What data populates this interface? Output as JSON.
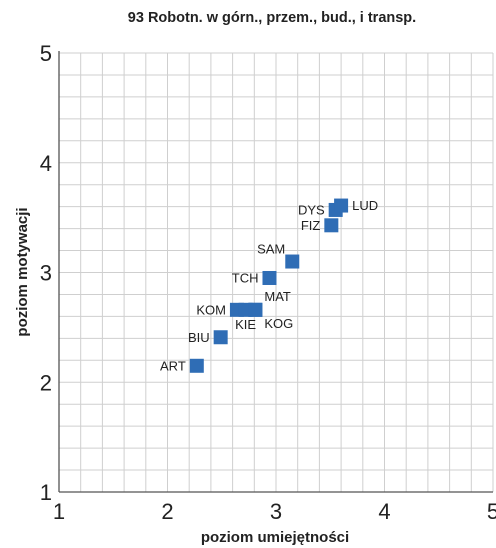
{
  "chart_data": {
    "type": "scatter",
    "title": "93 Robotn. w górn., przem., bud., i transp.",
    "xlabel": "poziom umiejętności",
    "ylabel": "poziom motywacji",
    "xlim": [
      1,
      5
    ],
    "ylim": [
      1,
      5
    ],
    "xticks": [
      "1",
      "2",
      "3",
      "4",
      "5"
    ],
    "yticks": [
      "1",
      "2",
      "3",
      "4",
      "5"
    ],
    "grid": true,
    "minor_grid_step": 0.2,
    "marker": "square",
    "marker_color": "#2f6db5",
    "points": [
      {
        "label": "ART",
        "x": 2.27,
        "y": 2.15,
        "label_pos": "left"
      },
      {
        "label": "BIU",
        "x": 2.49,
        "y": 2.41,
        "label_pos": "left"
      },
      {
        "label": "KOM",
        "x": 2.64,
        "y": 2.66,
        "label_pos": "left"
      },
      {
        "label": "KIE",
        "x": 2.72,
        "y": 2.66,
        "label_pos": "below"
      },
      {
        "label": "MAT",
        "x": 2.81,
        "y": 2.66,
        "label_pos": "above-right"
      },
      {
        "label": "KOG",
        "x": 2.81,
        "y": 2.66,
        "label_pos": "below-right"
      },
      {
        "label": "TCH",
        "x": 2.94,
        "y": 2.95,
        "label_pos": "left"
      },
      {
        "label": "SAM",
        "x": 3.15,
        "y": 3.1,
        "label_pos": "above-left"
      },
      {
        "label": "FIZ",
        "x": 3.51,
        "y": 3.43,
        "label_pos": "left"
      },
      {
        "label": "DYS",
        "x": 3.55,
        "y": 3.57,
        "label_pos": "left"
      },
      {
        "label": "LUD",
        "x": 3.6,
        "y": 3.61,
        "label_pos": "right"
      }
    ]
  }
}
